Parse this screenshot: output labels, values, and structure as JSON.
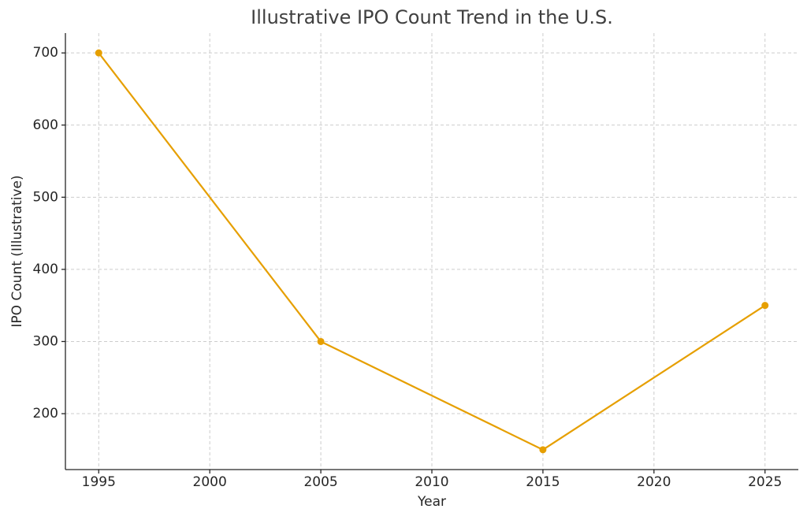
{
  "chart_data": {
    "type": "line",
    "title": "Illustrative IPO Count Trend in the U.S.",
    "x_label": "Year",
    "y_label": "IPO Count (Illustrative)",
    "x": [
      1995,
      2005,
      2015,
      2025
    ],
    "series": [
      {
        "name": "IPO Count",
        "color": "#e69f00",
        "values": [
          700,
          300,
          150,
          350
        ]
      }
    ],
    "xlim": [
      1993.5,
      2026.5
    ],
    "xticks": [
      1995,
      2000,
      2005,
      2010,
      2015,
      2020,
      2025
    ],
    "ylim": [
      122.5,
      727.5
    ],
    "yticks": [
      200,
      300,
      400,
      500,
      600,
      700
    ],
    "grid": true
  }
}
